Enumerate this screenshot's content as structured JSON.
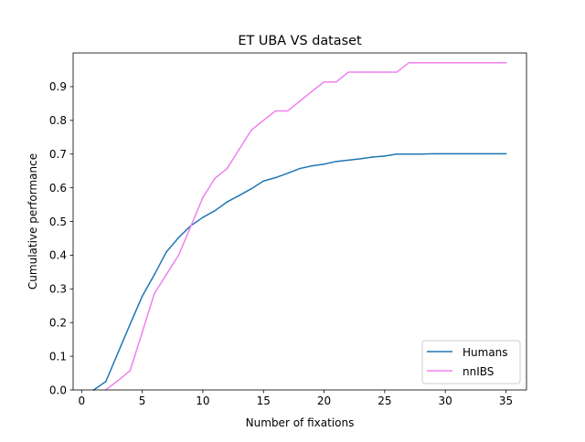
{
  "chart_data": {
    "type": "line",
    "title": "ET UBA VS dataset",
    "xlabel": "Number of fixations",
    "ylabel": "Cumulative performance",
    "xlim": [
      -0.7,
      36.7
    ],
    "ylim": [
      0,
      1.0
    ],
    "xticks": [
      "0",
      "5",
      "10",
      "15",
      "20",
      "25",
      "30",
      "35"
    ],
    "xtick_values": [
      0,
      5,
      10,
      15,
      20,
      25,
      30,
      35
    ],
    "yticks": [
      "0.0",
      "0.1",
      "0.2",
      "0.3",
      "0.4",
      "0.5",
      "0.6",
      "0.7",
      "0.8",
      "0.9"
    ],
    "ytick_values": [
      0.0,
      0.1,
      0.2,
      0.3,
      0.4,
      0.5,
      0.6,
      0.7,
      0.8,
      0.9
    ],
    "grid": false,
    "legend_position": "lower-right",
    "series": [
      {
        "name": "Humans",
        "color": "#1f77b4",
        "x": [
          1,
          2,
          3,
          4,
          5,
          6,
          7,
          8,
          9,
          10,
          11,
          12,
          13,
          14,
          15,
          16,
          17,
          18,
          19,
          20,
          21,
          22,
          23,
          24,
          25,
          26,
          27,
          28,
          29,
          30,
          31,
          32,
          33,
          34,
          35
        ],
        "y": [
          0.0,
          0.025,
          0.11,
          0.195,
          0.278,
          0.342,
          0.41,
          0.452,
          0.487,
          0.512,
          0.532,
          0.558,
          0.577,
          0.597,
          0.62,
          0.63,
          0.643,
          0.657,
          0.665,
          0.67,
          0.678,
          0.682,
          0.686,
          0.691,
          0.694,
          0.7,
          0.7,
          0.7,
          0.701,
          0.701,
          0.701,
          0.701,
          0.701,
          0.701,
          0.701
        ]
      },
      {
        "name": "nnIBS",
        "color": "#ee82ee",
        "x": [
          2,
          3,
          4,
          5,
          6,
          7,
          8,
          9,
          10,
          11,
          12,
          13,
          14,
          15,
          16,
          17,
          18,
          19,
          20,
          21,
          22,
          23,
          24,
          25,
          26,
          27,
          28,
          29,
          30,
          31,
          32,
          33,
          34,
          35
        ],
        "y": [
          0.0,
          0.028,
          0.057,
          0.171,
          0.286,
          0.343,
          0.4,
          0.485,
          0.571,
          0.628,
          0.657,
          0.714,
          0.771,
          0.8,
          0.828,
          0.828,
          0.857,
          0.886,
          0.914,
          0.914,
          0.943,
          0.943,
          0.943,
          0.943,
          0.943,
          0.971,
          0.971,
          0.971,
          0.971,
          0.971,
          0.971,
          0.971,
          0.971,
          0.971
        ]
      }
    ]
  }
}
